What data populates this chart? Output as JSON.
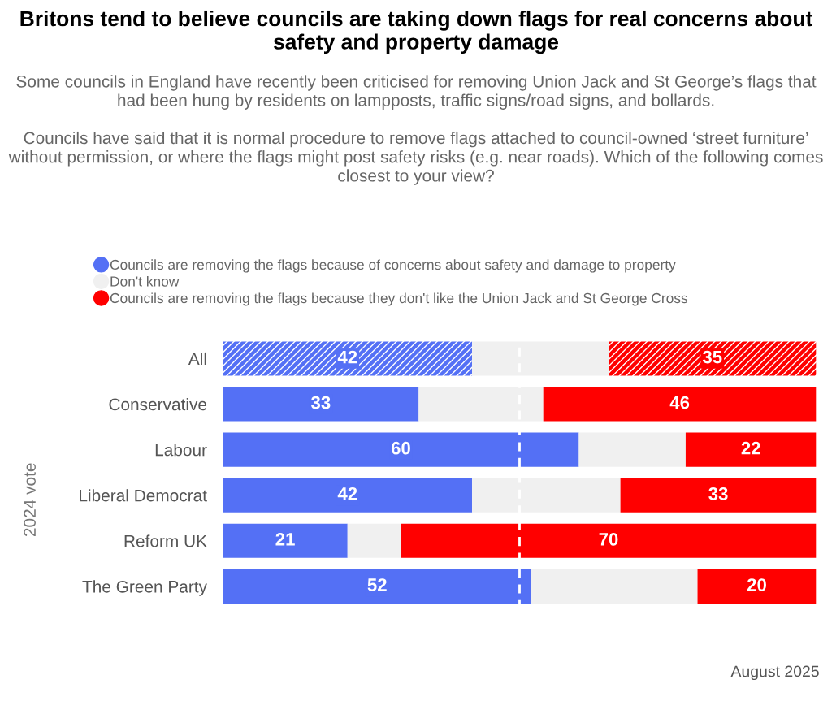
{
  "chart_data": {
    "type": "bar",
    "orientation": "horizontal",
    "stacked": true,
    "title": "Britons tend to believe councils are taking down flags for real concerns about safety and property damage",
    "subtitle": "Some councils in England have recently been criticised for removing Union Jack and St George’s flags that had been hung by residents on lampposts, traffic signs/road signs, and bollards.\n\nCouncils have said that it is normal procedure to remove flags attached to council-owned ‘street furniture’ without permission, or where the flags might post safety risks (e.g. near roads). Which of the following comes closest to your view?",
    "ylabel": "2024 vote",
    "categories": [
      "All",
      "Conservative",
      "Labour",
      "Liberal Democrat",
      "Reform UK",
      "The Green Party"
    ],
    "series": [
      {
        "name": "Councils are removing the flags because of concerns about safety and damage to property",
        "color": "#5470f5",
        "values": [
          42,
          33,
          60,
          42,
          21,
          52
        ],
        "value_labels": [
          "42",
          "33",
          "60",
          "42",
          "21",
          "52"
        ]
      },
      {
        "name": "Don't know",
        "color": "#f0f0f0",
        "values": [
          23,
          21,
          18,
          25,
          9,
          28
        ]
      },
      {
        "name": "Councils are removing the flags because they don't like the Union Jack and St George Cross",
        "color": "#ff0000",
        "values": [
          35,
          46,
          22,
          33,
          70,
          20
        ],
        "value_labels": [
          "35",
          "46",
          "22",
          "33",
          "70",
          "20"
        ]
      }
    ],
    "xlim": [
      0,
      100
    ],
    "ref_lines": [
      {
        "axis": "x",
        "value": 50,
        "color": "#ffffff",
        "line_style": "dashed"
      }
    ],
    "tick_labels": "y",
    "legend": "top",
    "grid": false,
    "annotations": [
      "August 2025"
    ]
  }
}
